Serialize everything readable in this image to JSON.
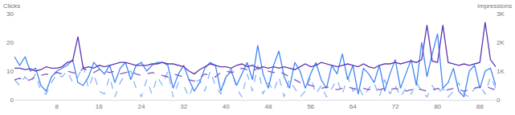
{
  "chart_data": {
    "type": "line",
    "ylabel": "Clicks",
    "y2label": "Impressions",
    "x": [
      0,
      1,
      2,
      3,
      4,
      5,
      6,
      7,
      8,
      9,
      10,
      11,
      12,
      13,
      14,
      15,
      16,
      17,
      18,
      19,
      20,
      21,
      22,
      23,
      24,
      25,
      26,
      27,
      28,
      29,
      30,
      31,
      32,
      33,
      34,
      35,
      36,
      37,
      38,
      39,
      40,
      41,
      42,
      43,
      44,
      45,
      46,
      47,
      48,
      49,
      50,
      51,
      52,
      53,
      54,
      55,
      56,
      57,
      58,
      59,
      60,
      61,
      62,
      63,
      64,
      65,
      66,
      67,
      68,
      69,
      70,
      71,
      72,
      73,
      74,
      75,
      76,
      77,
      78,
      79,
      80,
      81,
      82,
      83,
      84,
      85,
      86,
      87,
      88,
      89,
      90,
      91
    ],
    "xlim": [
      0,
      91
    ],
    "xticks": [
      8,
      16,
      24,
      32,
      40,
      48,
      56,
      64,
      72,
      80,
      88
    ],
    "ylim": [
      0,
      30
    ],
    "yticks": [
      0,
      10,
      20,
      30
    ],
    "y2lim": [
      0,
      3000
    ],
    "y2ticks": [
      0,
      {
        "value": 1000,
        "label": "1K"
      },
      {
        "value": 2000,
        "label": "2K"
      },
      {
        "value": 3000,
        "label": "3K"
      }
    ],
    "grid": false,
    "series": [
      {
        "color": "#7e57c2",
        "line_style": "dashed",
        "axis": "y2",
        "values": [
          700,
          750,
          650,
          700,
          800,
          850,
          900,
          850,
          950,
          900,
          1000,
          950,
          900,
          1100,
          1000,
          950,
          1050,
          1000,
          950,
          1000,
          900,
          950,
          1000,
          900,
          850,
          900,
          950,
          900,
          850,
          800,
          900,
          850,
          800,
          700,
          650,
          750,
          900,
          850,
          800,
          950,
          1000,
          950,
          1000,
          1100,
          1050,
          1000,
          1100,
          1050,
          1000,
          950,
          1000,
          900,
          800,
          700,
          600,
          550,
          500,
          450,
          400,
          450,
          400,
          350,
          400,
          450,
          400,
          350,
          400,
          350,
          400,
          350,
          400,
          350,
          400,
          350,
          300,
          350,
          400,
          350,
          300,
          350,
          400,
          300,
          350,
          400,
          350,
          300,
          350,
          400,
          450,
          500,
          400,
          350
        ]
      },
      {
        "color": "#8ab4f8",
        "line_style": "dashed",
        "axis": "y",
        "values": [
          7,
          5,
          8,
          6,
          9,
          3,
          2,
          6,
          9,
          8,
          10,
          6,
          8,
          12,
          4,
          9,
          3,
          2,
          8,
          1,
          6,
          9,
          10,
          4,
          1,
          7,
          2,
          8,
          5,
          10,
          1,
          6,
          5,
          1,
          6,
          7,
          3,
          10,
          5,
          2,
          8,
          11,
          4,
          1,
          9,
          3,
          12,
          2,
          6,
          3,
          8,
          1,
          7,
          4,
          1,
          3,
          8,
          2,
          5,
          1,
          4,
          7,
          2,
          8,
          3,
          5,
          1,
          4,
          6,
          1,
          7,
          2,
          5,
          1,
          4,
          2,
          6,
          3,
          1,
          5,
          2,
          4,
          1,
          3,
          6,
          2,
          1,
          4,
          5,
          2,
          8,
          4
        ]
      },
      {
        "color": "#4285f4",
        "line_style": "solid",
        "axis": "y",
        "values": [
          15,
          12,
          15,
          10,
          11,
          5,
          3,
          8,
          10,
          11,
          12,
          14,
          6,
          5,
          8,
          13,
          11,
          9,
          12,
          6,
          11,
          13,
          7,
          12,
          13,
          10,
          12,
          13,
          13,
          12,
          4,
          9,
          12,
          7,
          3,
          6,
          11,
          13,
          12,
          3,
          8,
          10,
          5,
          9,
          13,
          7,
          19,
          9,
          4,
          12,
          17,
          8,
          4,
          13,
          10,
          4,
          9,
          13,
          7,
          4,
          12,
          9,
          16,
          7,
          12,
          2,
          11,
          9,
          6,
          12,
          3,
          9,
          14,
          4,
          9,
          14,
          5,
          20,
          8,
          16,
          23,
          4,
          6,
          11,
          3,
          1,
          10,
          12,
          4,
          10,
          11,
          5
        ]
      },
      {
        "color": "#5e35b1",
        "line_style": "solid",
        "axis": "y2",
        "values": [
          1100,
          1100,
          1050,
          1080,
          1000,
          1050,
          1150,
          1100,
          1100,
          1150,
          1300,
          1350,
          2200,
          1100,
          1150,
          1100,
          1200,
          1150,
          1200,
          1250,
          1300,
          1300,
          1250,
          1200,
          1200,
          1200,
          1250,
          1250,
          1300,
          1250,
          1250,
          1200,
          1150,
          1000,
          900,
          1050,
          1150,
          1250,
          1200,
          1150,
          1150,
          1100,
          1200,
          1250,
          1150,
          1200,
          1100,
          1150,
          1100,
          1150,
          1100,
          1150,
          1100,
          1050,
          1150,
          1250,
          1150,
          1200,
          1300,
          1250,
          1200,
          1150,
          1200,
          1250,
          1200,
          1150,
          1250,
          1150,
          1100,
          1200,
          1250,
          1250,
          1300,
          1250,
          1300,
          1350,
          1300,
          1400,
          2600,
          1350,
          1300,
          2600,
          1300,
          1250,
          1200,
          1250,
          1200,
          1250,
          1300,
          2700,
          1400,
          1150
        ]
      }
    ]
  }
}
